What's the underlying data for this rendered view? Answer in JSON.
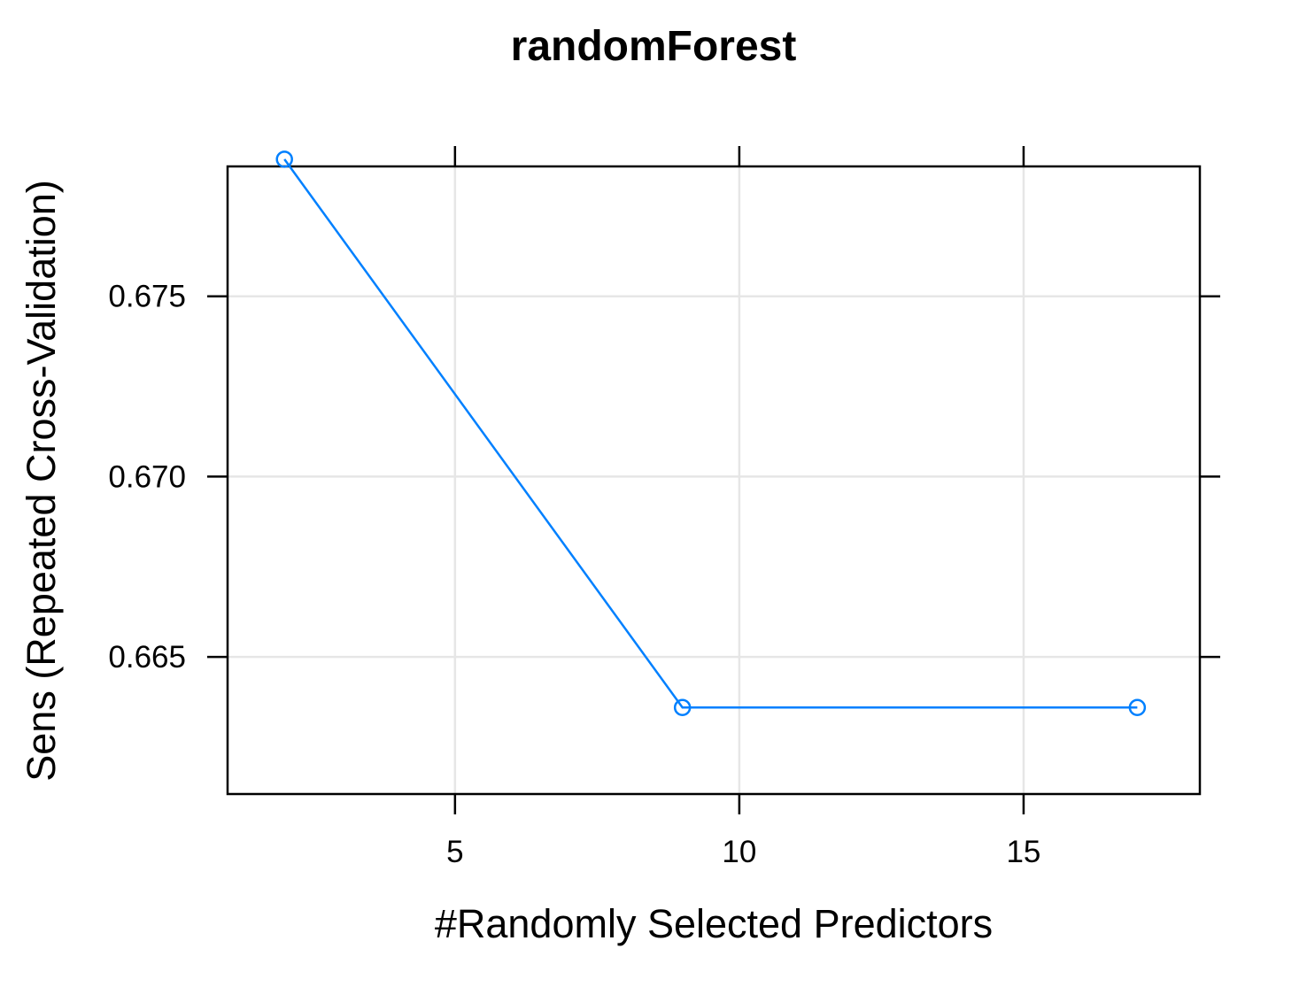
{
  "chart_data": {
    "type": "line",
    "title": "randomForest",
    "xlabel": "#Randomly Selected Predictors",
    "ylabel": "Sens (Repeated Cross-Validation)",
    "x": [
      2,
      9,
      17
    ],
    "series": [
      {
        "values": [
          0.6788,
          0.6636,
          0.6636
        ]
      }
    ],
    "xlim": [
      1,
      18.1
    ],
    "ylim": [
      0.6612,
      0.6786
    ],
    "xticks": [
      5,
      10,
      15
    ],
    "xtick_labels": [
      "5",
      "10",
      "15"
    ],
    "yticks": [
      0.665,
      0.67,
      0.675
    ],
    "ytick_labels": [
      "0.665",
      "0.670",
      "0.675"
    ],
    "grid": true,
    "marker": "open-circle",
    "colors": {
      "series": "#0080ff",
      "grid": "#e6e6e6",
      "axis": "#000000"
    }
  }
}
